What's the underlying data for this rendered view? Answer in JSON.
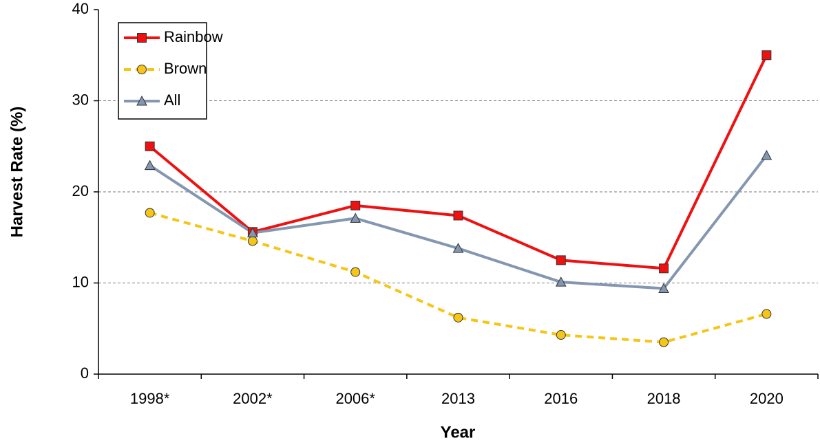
{
  "chart_data": {
    "type": "line",
    "x_label": "Year",
    "y_label": "Harvest Rate (%)",
    "categories": [
      "1998*",
      "2002*",
      "2006*",
      "2013",
      "2016",
      "2018",
      "2020"
    ],
    "series": [
      {
        "name": "Rainbow",
        "color": "#ee1111",
        "marker": "square",
        "linestyle": "solid",
        "values": [
          25,
          15.6,
          18.5,
          17.4,
          12.5,
          11.6,
          35
        ]
      },
      {
        "name": "Brown",
        "color": "#f5c518",
        "marker": "circle",
        "linestyle": "dashed",
        "values": [
          17.7,
          14.6,
          11.2,
          6.2,
          4.3,
          3.5,
          6.6
        ]
      },
      {
        "name": "All",
        "color": "#8497b0",
        "marker": "triangle",
        "linestyle": "solid",
        "values": [
          22.9,
          15.5,
          17.1,
          13.8,
          10.1,
          9.4,
          24.0
        ]
      }
    ],
    "ylim": [
      0,
      40
    ],
    "yticks": [
      0,
      10,
      20,
      30,
      40
    ],
    "grid": true,
    "legend": "upper left"
  }
}
